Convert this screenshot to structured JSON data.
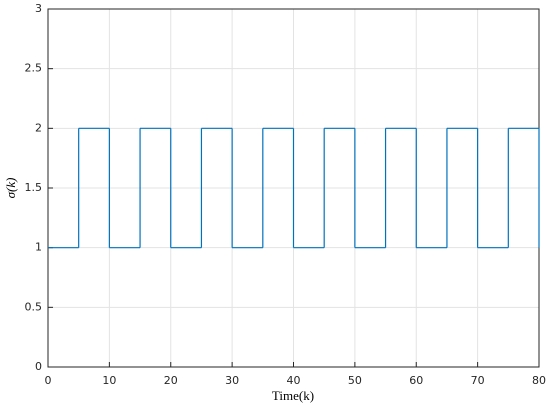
{
  "chart_data": {
    "type": "stairs",
    "xlabel": "Time(k)",
    "ylabel": "σ(k)",
    "x": [
      0,
      5,
      10,
      15,
      20,
      25,
      30,
      35,
      40,
      45,
      50,
      55,
      60,
      65,
      70,
      75,
      80
    ],
    "values": [
      1,
      2,
      1,
      2,
      1,
      2,
      1,
      2,
      1,
      2,
      1,
      2,
      1,
      2,
      1,
      2,
      1
    ],
    "color": "#0072bd",
    "xlim": [
      0,
      80
    ],
    "xticks": [
      0,
      10,
      20,
      30,
      40,
      50,
      60,
      70,
      80
    ],
    "ylim": [
      0,
      3
    ],
    "yticks": [
      0,
      0.5,
      1,
      1.5,
      2,
      2.5,
      3
    ],
    "grid": true
  }
}
